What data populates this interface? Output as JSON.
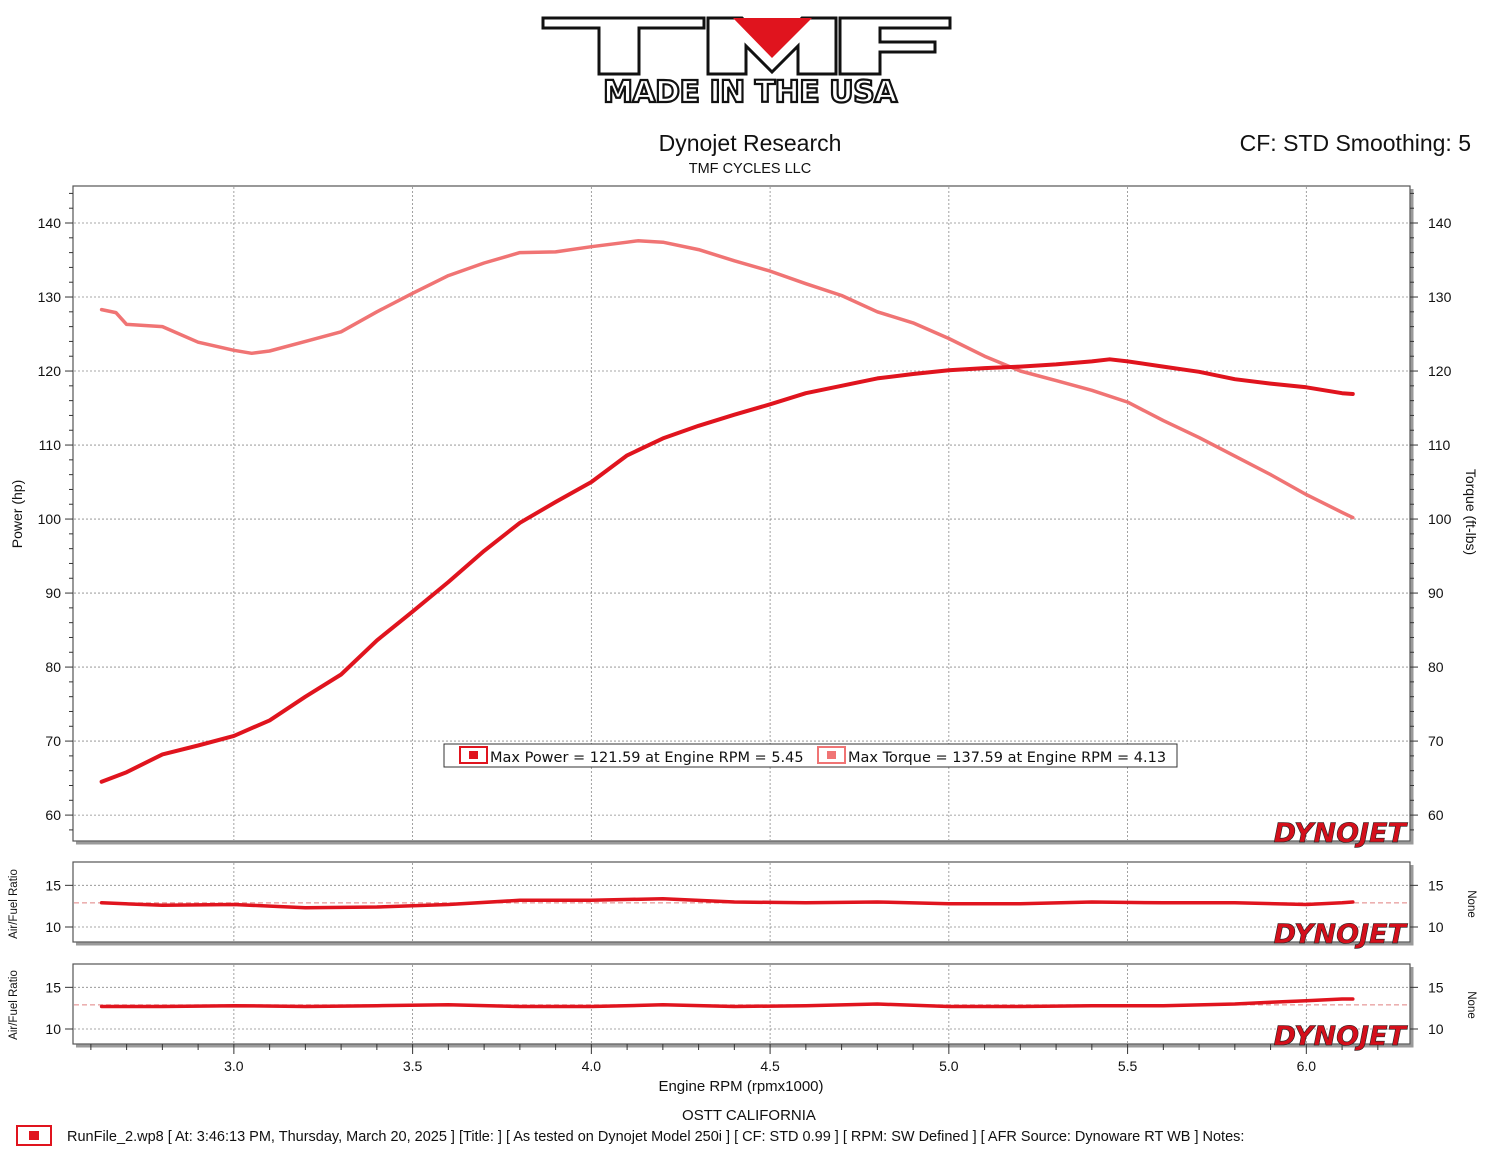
{
  "logo": {
    "brand": "TMF",
    "tagline": "MADE IN THE USA"
  },
  "header": {
    "title": "Dynojet Research",
    "subtitle": "TMF CYCLES LLC",
    "cf_smoothing": "CF: STD Smoothing: 5"
  },
  "watermark": "DYNOJET",
  "footer": {
    "location": "OSTT CALIFORNIA",
    "run_info": "RunFile_2.wp8 [ At: 3:46:13 PM, Thursday, March 20, 2025 ] [Title: ]  [ As tested on Dynojet Model 250i ] [ CF: STD 0.99 ] [ RPM: SW Defined ] [ AFR Source: Dynoware RT WB ] Notes:"
  },
  "colors": {
    "power": "#e0141e",
    "torque": "#f07474",
    "afr": "#e0141e",
    "grid": "#8a8a8a",
    "afr_ref": "#e08080"
  },
  "chart_data": [
    {
      "type": "line",
      "title": "Dynojet Research",
      "xlabel": "Engine RPM (rpmx1000)",
      "ylabel": "Power (hp)",
      "y2label": "Torque (ft-lbs)",
      "xlim": [
        2.55,
        6.29
      ],
      "ylim": [
        56.5,
        145
      ],
      "x_ticks": [
        "3.0",
        "3.5",
        "4.0",
        "4.5",
        "5.0",
        "5.5",
        "6.0"
      ],
      "y_ticks": [
        "60",
        "70",
        "80",
        "90",
        "100",
        "110",
        "120",
        "130",
        "140"
      ],
      "grid": true,
      "legend": [
        "Max Power = 121.59 at Engine RPM = 5.45",
        "Max Torque = 137.59 at Engine RPM = 4.13"
      ],
      "series": [
        {
          "name": "Max Power",
          "axis": "left",
          "x": [
            2.63,
            2.7,
            2.8,
            2.9,
            3.0,
            3.1,
            3.2,
            3.3,
            3.4,
            3.5,
            3.6,
            3.7,
            3.8,
            3.9,
            4.0,
            4.1,
            4.2,
            4.3,
            4.4,
            4.5,
            4.6,
            4.7,
            4.8,
            4.9,
            5.0,
            5.1,
            5.2,
            5.3,
            5.4,
            5.45,
            5.5,
            5.6,
            5.7,
            5.8,
            5.9,
            6.0,
            6.1,
            6.13
          ],
          "values": [
            64.5,
            65.8,
            68.2,
            69.4,
            70.7,
            72.8,
            76.0,
            79.0,
            83.6,
            87.5,
            91.5,
            95.7,
            99.5,
            102.3,
            105.0,
            108.6,
            110.9,
            112.6,
            114.1,
            115.5,
            117.0,
            118.0,
            119.0,
            119.6,
            120.1,
            120.4,
            120.6,
            120.9,
            121.3,
            121.59,
            121.3,
            120.6,
            119.9,
            118.9,
            118.3,
            117.8,
            117.0,
            116.9
          ]
        },
        {
          "name": "Max Torque",
          "axis": "right",
          "x": [
            2.63,
            2.67,
            2.7,
            2.8,
            2.9,
            3.0,
            3.05,
            3.1,
            3.2,
            3.3,
            3.4,
            3.5,
            3.6,
            3.7,
            3.8,
            3.9,
            4.0,
            4.1,
            4.13,
            4.2,
            4.3,
            4.4,
            4.5,
            4.6,
            4.7,
            4.8,
            4.9,
            5.0,
            5.1,
            5.2,
            5.3,
            5.4,
            5.5,
            5.6,
            5.7,
            5.8,
            5.9,
            6.0,
            6.1,
            6.13
          ],
          "values": [
            128.3,
            127.9,
            126.3,
            126.0,
            123.9,
            122.8,
            122.4,
            122.7,
            124.0,
            125.3,
            128.0,
            130.5,
            132.9,
            134.6,
            136.0,
            136.1,
            136.8,
            137.4,
            137.59,
            137.4,
            136.4,
            134.9,
            133.5,
            131.8,
            130.2,
            128.0,
            126.5,
            124.4,
            122.0,
            120.0,
            118.7,
            117.4,
            115.8,
            113.3,
            111.0,
            108.5,
            106.0,
            103.3,
            100.9,
            100.2
          ]
        }
      ]
    },
    {
      "type": "line",
      "ylabel": "Air/Fuel Ratio",
      "y2label": "None",
      "ylim": [
        8.2,
        17.8
      ],
      "y_ticks": [
        "15",
        "10"
      ],
      "grid": true,
      "reference_line": 12.9,
      "series": [
        {
          "x": [
            2.63,
            2.8,
            3.0,
            3.2,
            3.4,
            3.6,
            3.8,
            4.0,
            4.2,
            4.4,
            4.6,
            4.8,
            5.0,
            5.2,
            5.4,
            5.6,
            5.8,
            6.0,
            6.1,
            6.13
          ],
          "values": [
            12.9,
            12.6,
            12.7,
            12.3,
            12.4,
            12.7,
            13.2,
            13.2,
            13.4,
            13.0,
            12.9,
            13.0,
            12.8,
            12.8,
            13.0,
            12.9,
            12.9,
            12.7,
            12.9,
            13.0
          ]
        }
      ]
    },
    {
      "type": "line",
      "ylabel": "Air/Fuel Ratio",
      "y2label": "None",
      "ylim": [
        8.2,
        17.8
      ],
      "y_ticks": [
        "15",
        "10"
      ],
      "grid": true,
      "reference_line": 12.9,
      "series": [
        {
          "x": [
            2.63,
            2.8,
            3.0,
            3.2,
            3.4,
            3.6,
            3.8,
            4.0,
            4.2,
            4.4,
            4.6,
            4.8,
            5.0,
            5.2,
            5.4,
            5.6,
            5.8,
            5.9,
            6.0,
            6.1,
            6.13
          ],
          "values": [
            12.7,
            12.7,
            12.8,
            12.7,
            12.8,
            12.9,
            12.7,
            12.7,
            12.9,
            12.7,
            12.8,
            13.0,
            12.7,
            12.7,
            12.8,
            12.8,
            13.0,
            13.2,
            13.4,
            13.6,
            13.6
          ]
        }
      ]
    }
  ]
}
